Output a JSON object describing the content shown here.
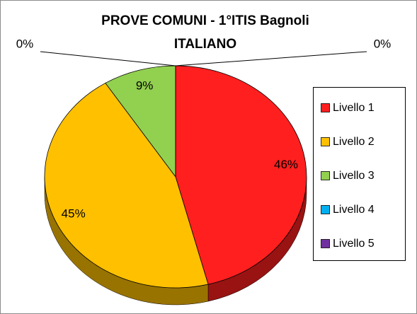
{
  "chart_data": {
    "type": "pie",
    "title": "PROVE COMUNI  - 1°ITIS Bagnoli",
    "subtitle": "ITALIANO",
    "categories": [
      "Livello 1",
      "Livello 2",
      "Livello 3",
      "Livello 4",
      "Livello 5"
    ],
    "values": [
      46,
      45,
      9,
      0,
      0
    ],
    "value_labels": [
      "46%",
      "45%",
      "9%",
      "0%",
      "0%"
    ],
    "colors": [
      "#ff1f1f",
      "#ffc000",
      "#92d050",
      "#00b0f0",
      "#7030a0"
    ],
    "legend": "right"
  }
}
